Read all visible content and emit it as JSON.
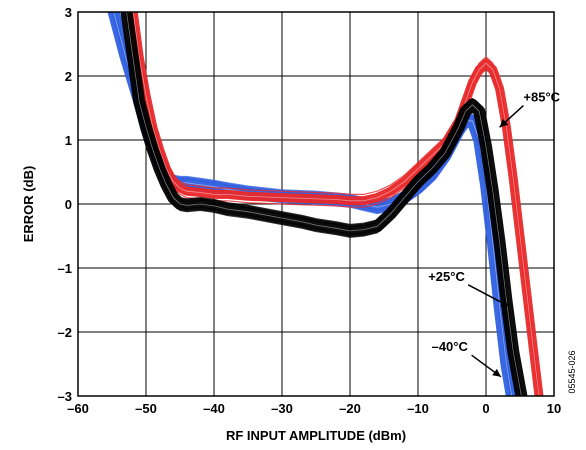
{
  "chart_data": {
    "type": "line",
    "title": "",
    "xlabel": "RF INPUT AMPLITUDE (dBm)",
    "ylabel": "ERROR (dB)",
    "xlim": [
      -60,
      10
    ],
    "ylim": [
      -3,
      3
    ],
    "x_ticks": [
      -60,
      -50,
      -40,
      -30,
      -20,
      -10,
      0,
      10
    ],
    "y_ticks": [
      -3,
      -2,
      -1,
      0,
      1,
      2,
      3
    ],
    "x_tick_labels": [
      "–60",
      "–50",
      "–40",
      "–30",
      "–20",
      "–10",
      "0",
      "10"
    ],
    "y_tick_labels": [
      "–3",
      "–2",
      "–1",
      "0",
      "1",
      "2",
      "3"
    ],
    "grid": true,
    "figure_code": "05545-026",
    "series": [
      {
        "name": "–40°C",
        "color": "#2f5fe0",
        "x": [
          -55,
          -53,
          -51,
          -50,
          -49,
          -48,
          -47,
          -46,
          -45,
          -44,
          -42,
          -40,
          -38,
          -35,
          -30,
          -25,
          -20,
          -18,
          -16,
          -14,
          -12,
          -10,
          -8,
          -6,
          -5,
          -4,
          -3,
          -2,
          -1,
          0,
          1,
          2,
          3,
          3.8
        ],
        "y": [
          3.1,
          2.3,
          1.6,
          1.25,
          0.95,
          0.65,
          0.45,
          0.35,
          0.33,
          0.33,
          0.3,
          0.27,
          0.23,
          0.18,
          0.12,
          0.1,
          0.05,
          0.0,
          -0.05,
          0.0,
          0.1,
          0.25,
          0.45,
          0.75,
          0.95,
          1.15,
          1.3,
          1.3,
          1.0,
          0.3,
          -0.6,
          -1.6,
          -2.5,
          -3.0
        ]
      },
      {
        "name": "+25°C",
        "color": "#000000",
        "x": [
          -53,
          -51,
          -50,
          -49,
          -48,
          -47,
          -46,
          -45,
          -44,
          -42,
          -40,
          -38,
          -35,
          -30,
          -27,
          -25,
          -22,
          -20,
          -18,
          -16,
          -14,
          -12,
          -10,
          -8,
          -6,
          -4,
          -3,
          -2,
          -1,
          0,
          1,
          2,
          3,
          4,
          5.2
        ],
        "y": [
          3.1,
          1.6,
          1.2,
          0.85,
          0.55,
          0.3,
          0.1,
          0.0,
          -0.02,
          0.0,
          -0.03,
          -0.08,
          -0.12,
          -0.22,
          -0.28,
          -0.33,
          -0.38,
          -0.42,
          -0.4,
          -0.35,
          -0.15,
          0.1,
          0.35,
          0.55,
          0.8,
          1.2,
          1.45,
          1.55,
          1.45,
          0.9,
          0.2,
          -0.6,
          -1.5,
          -2.3,
          -3.0
        ]
      },
      {
        "name": "+85°C",
        "color": "#e8292b",
        "x": [
          -52,
          -51,
          -50,
          -49,
          -48,
          -47,
          -46,
          -45,
          -44,
          -42,
          -40,
          -38,
          -35,
          -30,
          -25,
          -22,
          -20,
          -18,
          -16,
          -14,
          -12,
          -10,
          -8,
          -6,
          -4,
          -3,
          -2,
          -1,
          0,
          1,
          2,
          3,
          4,
          5,
          6,
          7,
          7.8
        ],
        "y": [
          3.1,
          2.3,
          1.7,
          1.2,
          0.85,
          0.55,
          0.35,
          0.25,
          0.2,
          0.18,
          0.15,
          0.15,
          0.12,
          0.1,
          0.08,
          0.07,
          0.05,
          0.05,
          0.1,
          0.2,
          0.35,
          0.55,
          0.75,
          0.95,
          1.3,
          1.6,
          1.9,
          2.1,
          2.2,
          2.1,
          1.8,
          1.2,
          0.4,
          -0.5,
          -1.4,
          -2.3,
          -3.0
        ]
      }
    ],
    "annotations": [
      {
        "text": "+85°C",
        "x": 5.5,
        "y": 1.6,
        "arrow_to": [
          2.0,
          1.2
        ]
      },
      {
        "text": "+25°C",
        "x": -8.5,
        "y": -1.2,
        "arrow_to": [
          3.4,
          -1.6
        ]
      },
      {
        "text": "–40°C",
        "x": -8.0,
        "y": -2.3,
        "arrow_to": [
          2.2,
          -2.7
        ]
      }
    ]
  }
}
